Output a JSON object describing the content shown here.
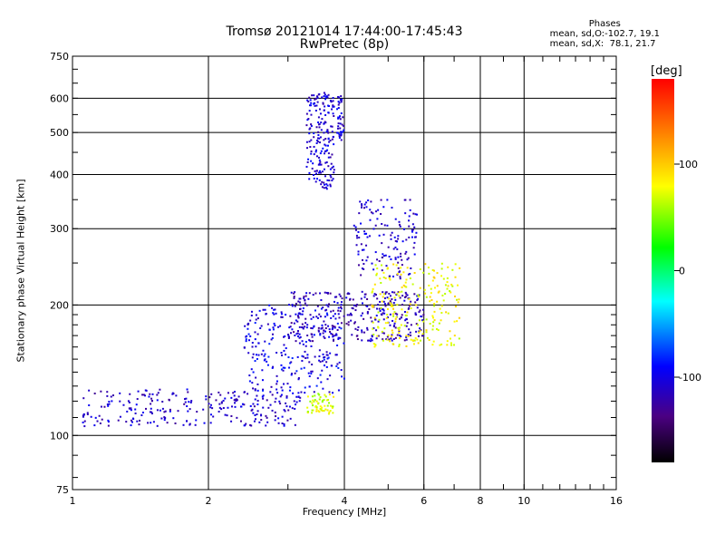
{
  "header": {
    "title_line1": "Tromsø 20121014 17:44:00-17:45:43",
    "title_line2": "RwPretec (8p)"
  },
  "phases_box": {
    "title": "Phases",
    "line1": "mean, sd,O:-102.7, 19.1",
    "line2": "mean, sd,X:  78.1, 21.7"
  },
  "colorbar": {
    "unit": "[deg]",
    "ticks": [
      "100",
      "0",
      "-100"
    ],
    "range": [
      -180,
      180
    ]
  },
  "chart_data": {
    "type": "scatter",
    "title": "Tromsø 20121014 17:44:00-17:45:43",
    "subtitle": "RwPretec (8p)",
    "xlabel": "Frequency [MHz]",
    "ylabel": "Stationary phase Virtual Height [km]",
    "x_scale": "log",
    "y_scale": "log",
    "xlim": [
      1,
      16
    ],
    "ylim": [
      75,
      750
    ],
    "x_ticks": [
      1,
      2,
      4,
      6,
      8,
      10,
      16
    ],
    "x_tick_labels": [
      "1",
      "2",
      "4",
      "6",
      "8",
      "10",
      "16"
    ],
    "y_ticks": [
      75,
      100,
      200,
      300,
      400,
      500,
      600,
      750
    ],
    "y_tick_labels": [
      "75",
      "100",
      "200",
      "300",
      "400",
      "500",
      "600",
      "750"
    ],
    "grid": true,
    "color_by": "phase [deg]",
    "clusters": [
      {
        "mode": "O",
        "phase": -110,
        "x": [
          1.05,
          3.2
        ],
        "y": [
          105,
          128
        ],
        "n": 260
      },
      {
        "mode": "O",
        "phase": -100,
        "x": [
          2.4,
          4.0
        ],
        "y": [
          125,
          200
        ],
        "n": 260
      },
      {
        "mode": "O",
        "phase": -115,
        "x": [
          3.0,
          6.0
        ],
        "y": [
          165,
          215
        ],
        "n": 320
      },
      {
        "mode": "O",
        "phase": -105,
        "x": [
          3.3,
          3.8
        ],
        "y": [
          370,
          620
        ],
        "n": 190
      },
      {
        "mode": "O",
        "phase": -105,
        "x": [
          3.85,
          4.0
        ],
        "y": [
          480,
          610
        ],
        "n": 40
      },
      {
        "mode": "O",
        "phase": -110,
        "x": [
          4.2,
          5.8
        ],
        "y": [
          230,
          350
        ],
        "n": 140
      },
      {
        "mode": "X",
        "phase": 70,
        "x": [
          3.3,
          3.8
        ],
        "y": [
          112,
          125
        ],
        "n": 60
      },
      {
        "mode": "X",
        "phase": 80,
        "x": [
          4.6,
          7.2
        ],
        "y": [
          160,
          250
        ],
        "n": 220
      }
    ]
  }
}
